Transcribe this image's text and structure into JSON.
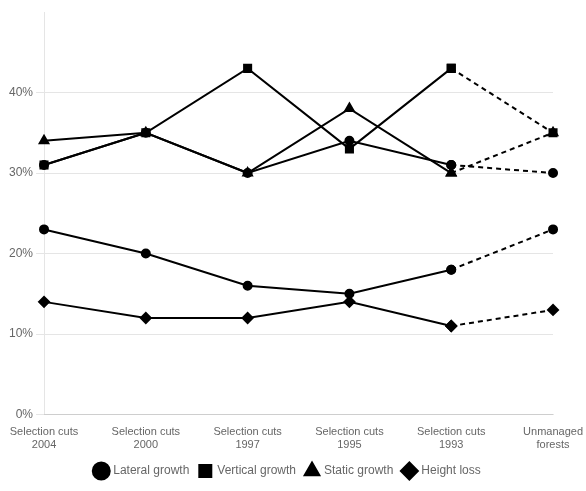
{
  "chart_data": {
    "type": "line",
    "categories": [
      "Selection cuts\n2004",
      "Selection cuts\n2000",
      "Selection cuts\n1997",
      "Selection cuts\n1995",
      "Selection cuts\n1993",
      "Unmanaged\nforests"
    ],
    "series": [
      {
        "name": "Lateral growth",
        "color": "#000000",
        "marker": "circle",
        "line_style": "solid",
        "values": [
          0.31,
          0.35,
          0.3,
          0.34,
          0.31,
          null
        ]
      },
      {
        "name": "Lateral growth",
        "color": "#000000",
        "marker": "circle",
        "line_style": "dashed",
        "values": [
          null,
          null,
          null,
          null,
          0.31,
          0.3
        ]
      },
      {
        "name": "Vertical growth",
        "color": "#000000",
        "marker": "square",
        "line_style": "solid",
        "values": [
          0.31,
          0.35,
          0.43,
          0.33,
          0.43,
          null
        ]
      },
      {
        "name": "Vertical growth",
        "color": "#000000",
        "marker": "square",
        "line_style": "dashed",
        "values": [
          null,
          null,
          null,
          null,
          0.43,
          0.35
        ]
      },
      {
        "name": "Static growth",
        "color": "#000000",
        "marker": "triangle",
        "line_style": "solid",
        "values": [
          0.34,
          0.35,
          0.3,
          0.38,
          0.3,
          null
        ]
      },
      {
        "name": "Static growth",
        "color": "#000000",
        "marker": "triangle",
        "line_style": "dashed",
        "values": [
          null,
          null,
          null,
          null,
          0.3,
          0.35
        ]
      },
      {
        "name": "Lateral growth",
        "color": "#000000",
        "marker": "circle",
        "line_style": "solid",
        "values": [
          0.23,
          0.2,
          0.16,
          0.15,
          0.18,
          null
        ]
      },
      {
        "name": "Lateral growth",
        "color": "#000000",
        "marker": "circle",
        "line_style": "dashed",
        "values": [
          null,
          null,
          null,
          null,
          0.18,
          0.23
        ]
      },
      {
        "name": "Height loss",
        "color": "#000000",
        "marker": "diamond",
        "line_style": "solid",
        "values": [
          0.14,
          0.12,
          0.12,
          0.14,
          0.11,
          null
        ]
      },
      {
        "name": "Height loss",
        "color": "#000000",
        "marker": "diamond",
        "line_style": "dashed",
        "values": [
          null,
          null,
          null,
          null,
          0.11,
          0.13
        ]
      }
    ],
    "ylim": [
      0.0,
      0.5
    ],
    "yticks": [
      {
        "value": 0.0,
        "label": "0%"
      },
      {
        "value": 0.1,
        "label": "10%"
      },
      {
        "value": 0.2,
        "label": "20%"
      },
      {
        "value": 0.3,
        "label": "30%"
      },
      {
        "value": 0.4,
        "label": "40%"
      }
    ],
    "grid": true,
    "legend": "bottom"
  }
}
